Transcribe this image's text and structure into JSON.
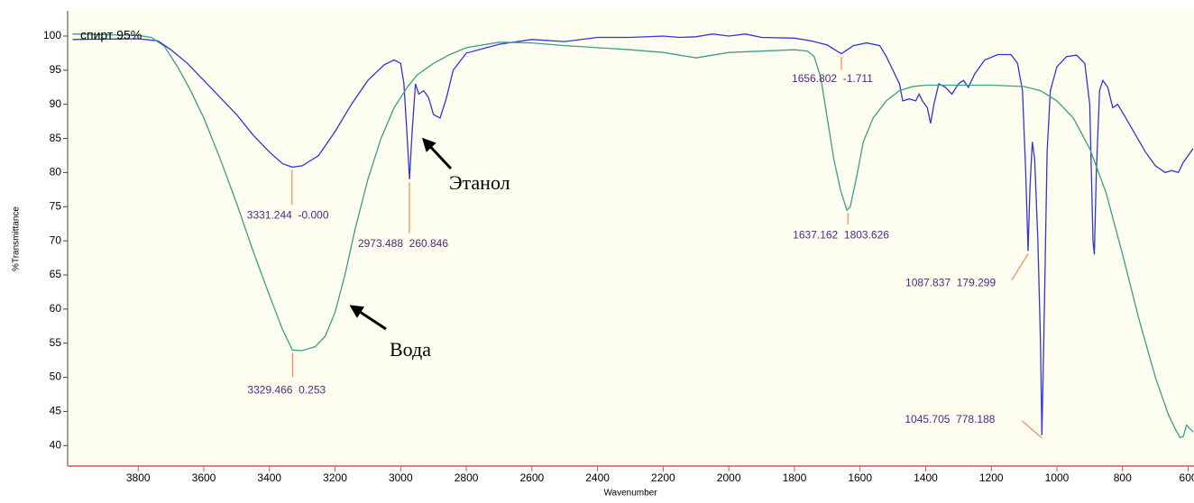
{
  "chart_data": {
    "type": "line",
    "x_label": "Wavenumber",
    "y_label": "%Transmittance",
    "xlim": [
      4015,
      585
    ],
    "ylim": [
      37,
      103.7
    ],
    "xticks": [
      3800,
      3600,
      3400,
      3200,
      3000,
      2800,
      2600,
      2400,
      2200,
      2000,
      1800,
      1600,
      1400,
      1200,
      1000,
      800,
      600
    ],
    "yticks": [
      40,
      45,
      50,
      55,
      60,
      65,
      70,
      75,
      80,
      85,
      90,
      95,
      100
    ],
    "series": [
      {
        "name": "спирт 95%",
        "color": "#3434d8",
        "x": [
          4000,
          3800,
          3740,
          3700,
          3650,
          3600,
          3550,
          3500,
          3450,
          3400,
          3360,
          3330,
          3300,
          3250,
          3200,
          3150,
          3100,
          3050,
          3020,
          3000,
          2990,
          2980,
          2973,
          2965,
          2955,
          2945,
          2930,
          2915,
          2900,
          2880,
          2860,
          2840,
          2800,
          2700,
          2600,
          2500,
          2400,
          2300,
          2200,
          2150,
          2100,
          2050,
          2000,
          1950,
          1900,
          1800,
          1750,
          1700,
          1670,
          1657,
          1645,
          1620,
          1580,
          1540,
          1520,
          1500,
          1480,
          1470,
          1450,
          1430,
          1420,
          1410,
          1395,
          1385,
          1375,
          1360,
          1340,
          1320,
          1300,
          1285,
          1270,
          1250,
          1220,
          1180,
          1140,
          1120,
          1105,
          1095,
          1088,
          1082,
          1075,
          1068,
          1058,
          1050,
          1046,
          1040,
          1030,
          1020,
          1000,
          970,
          940,
          915,
          900,
          890,
          886,
          880,
          870,
          860,
          845,
          830,
          815,
          790,
          760,
          730,
          700,
          670,
          650,
          630,
          615,
          600,
          585
        ],
        "values": [
          99.5,
          99.6,
          99.3,
          98,
          96,
          93.5,
          91,
          88.5,
          85.5,
          83,
          81.3,
          80.8,
          81,
          82.5,
          86,
          90,
          93.5,
          95.8,
          96.5,
          96,
          93,
          85,
          79,
          86,
          93,
          91.5,
          92,
          91,
          88.5,
          88,
          91,
          95,
          97.5,
          98.8,
          99.5,
          99.2,
          99.8,
          99.8,
          100,
          99.8,
          99.9,
          100.3,
          100,
          100.3,
          99.8,
          99.7,
          99.3,
          98.7,
          97.8,
          97.4,
          97.8,
          98.6,
          99,
          98.6,
          97,
          95,
          93,
          90.5,
          90.8,
          90.5,
          91.5,
          90.5,
          89.5,
          87.2,
          90,
          93,
          92.5,
          91.5,
          93,
          93.5,
          92.5,
          94.5,
          96.5,
          97.3,
          97.3,
          96,
          92,
          80,
          68.5,
          78,
          84.5,
          82,
          70,
          55,
          41.5,
          55,
          83,
          92,
          95.5,
          97,
          97.2,
          96,
          90,
          70,
          68,
          80,
          92,
          93.5,
          92.5,
          89.5,
          90,
          88,
          85.5,
          83,
          81,
          80,
          80.3,
          80,
          81.5,
          82.5,
          83.5
        ]
      },
      {
        "color": "#3a9e88",
        "x": [
          4000,
          3800,
          3760,
          3720,
          3680,
          3640,
          3600,
          3550,
          3500,
          3450,
          3400,
          3360,
          3330,
          3300,
          3260,
          3230,
          3200,
          3170,
          3140,
          3100,
          3060,
          3020,
          2980,
          2950,
          2900,
          2850,
          2800,
          2700,
          2600,
          2500,
          2400,
          2300,
          2200,
          2150,
          2100,
          2050,
          2000,
          1900,
          1800,
          1760,
          1740,
          1720,
          1700,
          1680,
          1660,
          1640,
          1630,
          1610,
          1590,
          1560,
          1520,
          1480,
          1440,
          1400,
          1200,
          1100,
          1050,
          1000,
          950,
          900,
          850,
          800,
          750,
          700,
          660,
          640,
          625,
          615,
          605,
          595,
          585
        ],
        "values": [
          100.3,
          100.1,
          99.8,
          98.5,
          95.5,
          92,
          88,
          82,
          75.5,
          68.5,
          62,
          57,
          54,
          53.9,
          54.5,
          56,
          59.5,
          65,
          71.5,
          79,
          85,
          89.5,
          92.5,
          94.3,
          96,
          97.3,
          98.3,
          99.1,
          99,
          98.6,
          98.3,
          98,
          97.6,
          97.2,
          96.8,
          97.2,
          97.6,
          97.8,
          98,
          97.8,
          97,
          94,
          88,
          82,
          77.5,
          74.5,
          75,
          79.5,
          84.5,
          88,
          90.5,
          92,
          92.6,
          92.8,
          92.8,
          92.6,
          92,
          90.5,
          88,
          83.5,
          77,
          68,
          58.5,
          50,
          44.5,
          42.5,
          41.2,
          41.3,
          43,
          42.5,
          42
        ]
      }
    ],
    "annotations": [
      {
        "label": "3331.244  -0.000",
        "x": 3331.244,
        "y": 80.8
      },
      {
        "label": "3329.466  0.253",
        "x": 3329.466,
        "y": 54
      },
      {
        "label": "2973.488  260.846",
        "x": 2973.488,
        "y": 79
      },
      {
        "label": "1656.802  -1.711",
        "x": 1656.802,
        "y": 97.4
      },
      {
        "label": "1637.162  1803.626",
        "x": 1637.162,
        "y": 74.5
      },
      {
        "label": "1087.837  179.299",
        "x": 1087.837,
        "y": 68.5
      },
      {
        "label": "1045.705  778.188",
        "x": 1045.705,
        "y": 41.5
      }
    ],
    "callouts": [
      "Этанол",
      "Вода"
    ]
  }
}
